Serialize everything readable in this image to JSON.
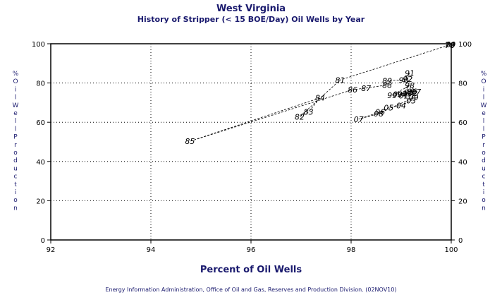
{
  "header": {
    "title": "West Virginia",
    "subtitle": "History of Stripper (< 15 BOE/Day) Oil Wells by Year"
  },
  "footer": {
    "source": "Energy Information Administration, Office of Oil and Gas, Reserves and Production Division. (02NOV10)"
  },
  "chart_data": {
    "type": "scatter",
    "title": "West Virginia",
    "subtitle": "History of Stripper (< 15 BOE/Day) Oil Wells by Year",
    "xlabel": "Percent of Oil Wells",
    "ylabel": "% Oil Well Production",
    "xlim": [
      92,
      100
    ],
    "ylim": [
      0,
      100
    ],
    "x_ticks": [
      92,
      94,
      96,
      98,
      100
    ],
    "y_ticks": [
      0,
      20,
      40,
      60,
      80,
      100
    ],
    "grid": true,
    "connected": true,
    "points": [
      {
        "label": "78",
        "x": 99.97,
        "y": 99.2
      },
      {
        "label": "79",
        "x": 99.98,
        "y": 99.4
      },
      {
        "label": "80",
        "x": 99.99,
        "y": 99.6
      },
      {
        "label": "81",
        "x": 97.78,
        "y": 81.5
      },
      {
        "label": "82",
        "x": 96.97,
        "y": 62.8
      },
      {
        "label": "83",
        "x": 97.15,
        "y": 65.2
      },
      {
        "label": "84",
        "x": 97.38,
        "y": 72.4
      },
      {
        "label": "85",
        "x": 94.78,
        "y": 50.3
      },
      {
        "label": "86",
        "x": 98.03,
        "y": 76.6
      },
      {
        "label": "87",
        "x": 98.3,
        "y": 77.4
      },
      {
        "label": "88",
        "x": 98.72,
        "y": 79.0
      },
      {
        "label": "89",
        "x": 98.72,
        "y": 81.2
      },
      {
        "label": "90",
        "x": 99.05,
        "y": 81.5
      },
      {
        "label": "91",
        "x": 99.17,
        "y": 85.0
      },
      {
        "label": "92",
        "x": 99.13,
        "y": 82.0
      },
      {
        "label": "93",
        "x": 99.12,
        "y": 74.6
      },
      {
        "label": "94",
        "x": 99.02,
        "y": 74.2
      },
      {
        "label": "95",
        "x": 99.15,
        "y": 75.2
      },
      {
        "label": "96",
        "x": 99.22,
        "y": 75.8
      },
      {
        "label": "97",
        "x": 99.3,
        "y": 75.6
      },
      {
        "label": "98",
        "x": 99.17,
        "y": 78.7
      },
      {
        "label": "99",
        "x": 98.82,
        "y": 73.8
      },
      {
        "label": "00",
        "x": 98.93,
        "y": 74.3
      },
      {
        "label": "01",
        "x": 99.05,
        "y": 73.5
      },
      {
        "label": "02",
        "x": 99.23,
        "y": 74.8
      },
      {
        "label": "03",
        "x": 99.2,
        "y": 71.0
      },
      {
        "label": "04",
        "x": 99.0,
        "y": 68.6
      },
      {
        "label": "05",
        "x": 98.75,
        "y": 67.4
      },
      {
        "label": "06",
        "x": 98.58,
        "y": 65.2
      },
      {
        "label": "07",
        "x": 98.15,
        "y": 61.6
      },
      {
        "label": "08",
        "x": 98.55,
        "y": 64.4
      },
      {
        "label": "09",
        "x": 99.25,
        "y": 72.6
      }
    ],
    "colors": {
      "title": "#1a1a6e",
      "axis": "#000000",
      "grid": "#000000",
      "line": "#000000"
    }
  }
}
